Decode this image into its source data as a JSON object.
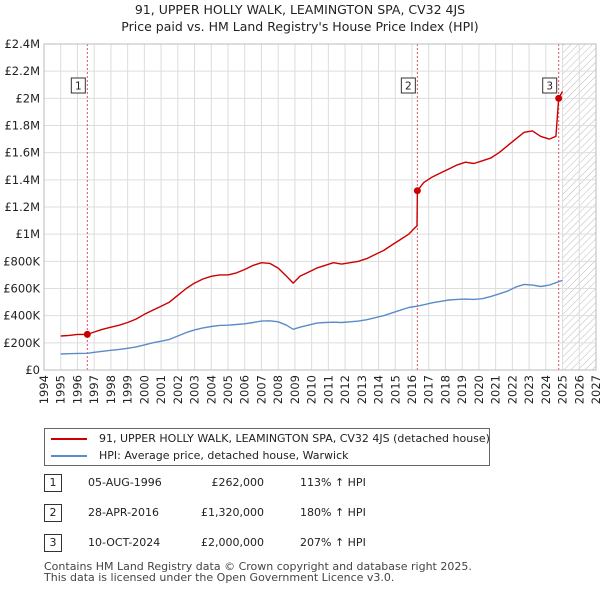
{
  "title": {
    "line1": "91, UPPER HOLLY WALK, LEAMINGTON SPA, CV32 4JS",
    "line2": "Price paid vs. HM Land Registry's House Price Index (HPI)"
  },
  "colors": {
    "property_line": "#cc0000",
    "hpi_line": "#5b8cc8",
    "grid": "#dddddd",
    "future_hatch": "#bbbbbb",
    "marker_dashed": "#e05060",
    "axis_text": "#222222"
  },
  "legend": {
    "entries": [
      {
        "label": "91, UPPER HOLLY WALK, LEAMINGTON SPA, CV32 4JS (detached house)",
        "color": "#cc0000"
      },
      {
        "label": "HPI: Average price, detached house, Warwick",
        "color": "#5b8cc8"
      }
    ]
  },
  "transactions": [
    {
      "id": "1",
      "date": "05-AUG-1996",
      "price": "£262,000",
      "hpi_change": "113% ↑ HPI"
    },
    {
      "id": "2",
      "date": "28-APR-2016",
      "price": "£1,320,000",
      "hpi_change": "180% ↑ HPI"
    },
    {
      "id": "3",
      "date": "10-OCT-2024",
      "price": "£2,000,000",
      "hpi_change": "207% ↑ HPI"
    }
  ],
  "footer": {
    "line1": "Contains HM Land Registry data © Crown copyright and database right 2025.",
    "line2": "This data is licensed under the Open Government Licence v3.0."
  },
  "chart_data": {
    "type": "line",
    "title": "Price paid vs. HM Land Registry's House Price Index (HPI)",
    "xlabel": "",
    "ylabel": "",
    "xlim": [
      1994,
      2027
    ],
    "ylim": [
      0,
      2400000
    ],
    "x_ticks": [
      1994,
      1995,
      1996,
      1997,
      1998,
      1999,
      2000,
      2001,
      2002,
      2003,
      2004,
      2005,
      2006,
      2007,
      2008,
      2009,
      2010,
      2011,
      2012,
      2013,
      2014,
      2015,
      2016,
      2017,
      2018,
      2019,
      2020,
      2021,
      2022,
      2023,
      2024,
      2025,
      2026,
      2027
    ],
    "y_ticks": [
      0,
      200000,
      400000,
      600000,
      800000,
      1000000,
      1200000,
      1400000,
      1600000,
      1800000,
      2000000,
      2200000,
      2400000
    ],
    "y_tick_labels": [
      "£0",
      "£200K",
      "£400K",
      "£600K",
      "£800K",
      "£1M",
      "£1.2M",
      "£1.4M",
      "£1.6M",
      "£1.8M",
      "£2M",
      "£2.2M",
      "£2.4M"
    ],
    "data_start": 1995.0,
    "data_end": 2025.1,
    "future_from": 2025.0,
    "sales": [
      {
        "label": "1",
        "x": 1996.59,
        "y": 262000
      },
      {
        "label": "2",
        "x": 2016.32,
        "y": 1320000
      },
      {
        "label": "3",
        "x": 2024.77,
        "y": 2000000
      }
    ],
    "series": [
      {
        "name": "91, UPPER HOLLY WALK, LEAMINGTON SPA, CV32 4JS (detached house)",
        "color": "#cc0000",
        "x": [
          1995.0,
          1995.5,
          1996.0,
          1996.59,
          1997.0,
          1997.5,
          1998.0,
          1998.5,
          1999.0,
          1999.5,
          2000.0,
          2000.5,
          2001.0,
          2001.5,
          2002.0,
          2002.5,
          2003.0,
          2003.5,
          2004.0,
          2004.5,
          2005.0,
          2005.5,
          2006.0,
          2006.5,
          2007.0,
          2007.5,
          2008.0,
          2008.5,
          2008.9,
          2009.3,
          2009.8,
          2010.3,
          2010.8,
          2011.3,
          2011.8,
          2012.3,
          2012.8,
          2013.3,
          2013.8,
          2014.3,
          2014.8,
          2015.3,
          2015.8,
          2016.2,
          2016.3,
          2016.32,
          2016.7,
          2017.2,
          2017.7,
          2018.2,
          2018.7,
          2019.2,
          2019.7,
          2020.2,
          2020.7,
          2021.2,
          2021.7,
          2022.2,
          2022.7,
          2023.2,
          2023.7,
          2024.2,
          2024.6,
          2024.77,
          2025.0
        ],
        "y": [
          250000,
          255000,
          262000,
          262000,
          280000,
          300000,
          315000,
          330000,
          350000,
          375000,
          410000,
          440000,
          470000,
          500000,
          550000,
          600000,
          640000,
          670000,
          690000,
          700000,
          700000,
          715000,
          740000,
          770000,
          790000,
          785000,
          750000,
          690000,
          640000,
          690000,
          720000,
          750000,
          770000,
          790000,
          780000,
          790000,
          800000,
          820000,
          850000,
          880000,
          920000,
          960000,
          1000000,
          1050000,
          1060000,
          1320000,
          1380000,
          1420000,
          1450000,
          1480000,
          1510000,
          1530000,
          1520000,
          1540000,
          1560000,
          1600000,
          1650000,
          1700000,
          1750000,
          1760000,
          1720000,
          1700000,
          1720000,
          2000000,
          2050000
        ]
      },
      {
        "name": "HPI: Average price, detached house, Warwick",
        "color": "#5b8cc8",
        "x": [
          1995.0,
          1995.5,
          1996.0,
          1996.59,
          1997.0,
          1997.5,
          1998.0,
          1998.5,
          1999.0,
          1999.5,
          2000.0,
          2000.5,
          2001.0,
          2001.5,
          2002.0,
          2002.5,
          2003.0,
          2003.5,
          2004.0,
          2004.5,
          2005.0,
          2005.5,
          2006.0,
          2006.5,
          2007.0,
          2007.5,
          2008.0,
          2008.5,
          2008.9,
          2009.3,
          2009.8,
          2010.3,
          2010.8,
          2011.3,
          2011.8,
          2012.3,
          2012.8,
          2013.3,
          2013.8,
          2014.3,
          2014.8,
          2015.3,
          2015.8,
          2016.3,
          2016.7,
          2017.2,
          2017.7,
          2018.2,
          2018.7,
          2019.2,
          2019.7,
          2020.2,
          2020.7,
          2021.2,
          2021.7,
          2022.2,
          2022.7,
          2023.2,
          2023.7,
          2024.2,
          2024.77,
          2025.0
        ],
        "y": [
          118000,
          120000,
          122000,
          123000,
          130000,
          138000,
          145000,
          152000,
          160000,
          170000,
          185000,
          200000,
          212000,
          225000,
          250000,
          275000,
          295000,
          310000,
          320000,
          328000,
          330000,
          335000,
          340000,
          350000,
          360000,
          362000,
          355000,
          330000,
          300000,
          315000,
          330000,
          345000,
          350000,
          352000,
          350000,
          355000,
          360000,
          370000,
          385000,
          400000,
          420000,
          440000,
          460000,
          470000,
          480000,
          495000,
          505000,
          515000,
          520000,
          522000,
          520000,
          525000,
          540000,
          560000,
          580000,
          610000,
          630000,
          625000,
          615000,
          625000,
          650000,
          660000
        ]
      }
    ]
  }
}
